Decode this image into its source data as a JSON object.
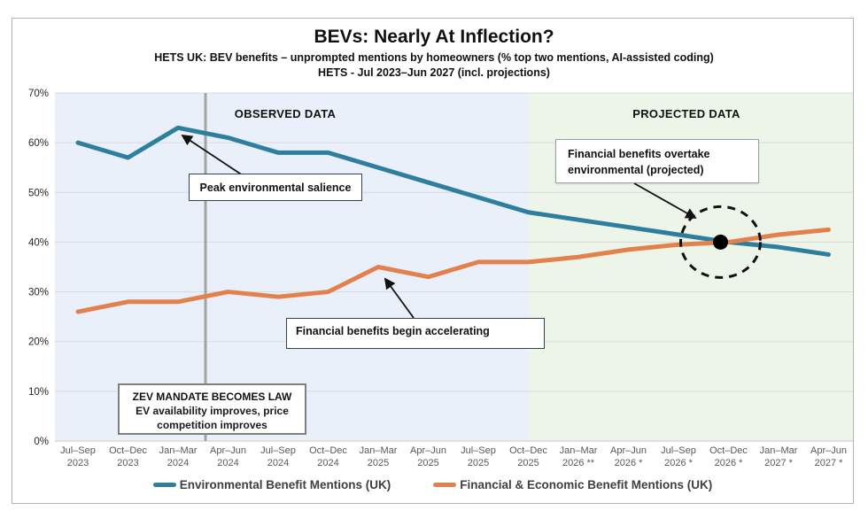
{
  "header": {
    "title": "BEVs: Nearly At Inflection?",
    "subtitle1": "HETS UK: BEV benefits – unprompted mentions by homeowners (% top two mentions, AI-assisted coding)",
    "subtitle2": "HETS - Jul 2023–Jun 2027 (incl. projections)"
  },
  "regions": {
    "observed_label": "OBSERVED DATA",
    "projected_label": "PROJECTED DATA"
  },
  "annotations": {
    "peak": "Peak environmental salience",
    "accelerating": "Financial benefits begin accelerating",
    "overtake_line1": "Financial benefits overtake",
    "overtake_line2": "environmental (projected)",
    "zev_title": "ZEV MANDATE BECOMES LAW",
    "zev_body": "EV availability improves, price competition improves"
  },
  "legend": [
    {
      "label": "Environmental Benefit Mentions (UK)",
      "color": "#2e7f9d"
    },
    {
      "label": "Financial & Economic Benefit Mentions (UK)",
      "color": "#e3814d"
    }
  ],
  "colors": {
    "environmental_line": "#2e7f9d",
    "financial_line": "#e3814d",
    "observed_bg": "#e9f0fa",
    "projected_bg": "#edf5e8",
    "gridline": "#d9d9d9",
    "axis_line": "#bfbfbf",
    "vline": "#a3a3a3",
    "tick_text": "#595959",
    "ytick_text": "#262626",
    "annotation_ink": "#111111"
  },
  "chart_data": {
    "type": "line",
    "title": "BEVs: Nearly At Inflection?",
    "ylabel": "% top two mentions",
    "ylim": [
      0,
      70
    ],
    "y_tick_step": 10,
    "y_tick_suffix": "%",
    "grid": true,
    "legend_position": "bottom",
    "categories": [
      [
        "Jul–Sep",
        "2023"
      ],
      [
        "Oct–Dec",
        "2023"
      ],
      [
        "Jan–Mar",
        "2024"
      ],
      [
        "Apr–Jun",
        "2024"
      ],
      [
        "Jul–Sep",
        "2024"
      ],
      [
        "Oct–Dec",
        "2024"
      ],
      [
        "Jan–Mar",
        "2025"
      ],
      [
        "Apr–Jun",
        "2025"
      ],
      [
        "Jul–Sep",
        "2025"
      ],
      [
        "Oct–Dec",
        "2025"
      ],
      [
        "Jan–Mar",
        "2026 **"
      ],
      [
        "Apr–Jun",
        "2026 *"
      ],
      [
        "Jul–Sep",
        "2026 *"
      ],
      [
        "Oct–Dec",
        "2026 *"
      ],
      [
        "Jan–Mar",
        "2027 *"
      ],
      [
        "Apr–Jun",
        "2027 *"
      ]
    ],
    "series": [
      {
        "name": "Environmental Benefit Mentions (UK)",
        "color": "#2e7f9d",
        "values": [
          60,
          57,
          63,
          61,
          58,
          58,
          55,
          52,
          49,
          46,
          44.5,
          43,
          41.5,
          40,
          39,
          37.5
        ]
      },
      {
        "name": "Financial & Economic Benefit Mentions (UK)",
        "color": "#e3814d",
        "values": [
          26,
          28,
          28,
          30,
          29,
          30,
          35,
          33,
          36,
          36,
          37,
          38.5,
          39.5,
          40,
          41.5,
          42.5
        ]
      }
    ],
    "observed_span_idx": [
      0,
      9
    ],
    "projected_span_idx": [
      9,
      15
    ],
    "zev_vline_between": [
      "Jan–Mar 2024",
      "Apr–Jun 2024"
    ],
    "crossing_point": {
      "category": "Oct–Dec 2026 *",
      "value": 40
    }
  }
}
